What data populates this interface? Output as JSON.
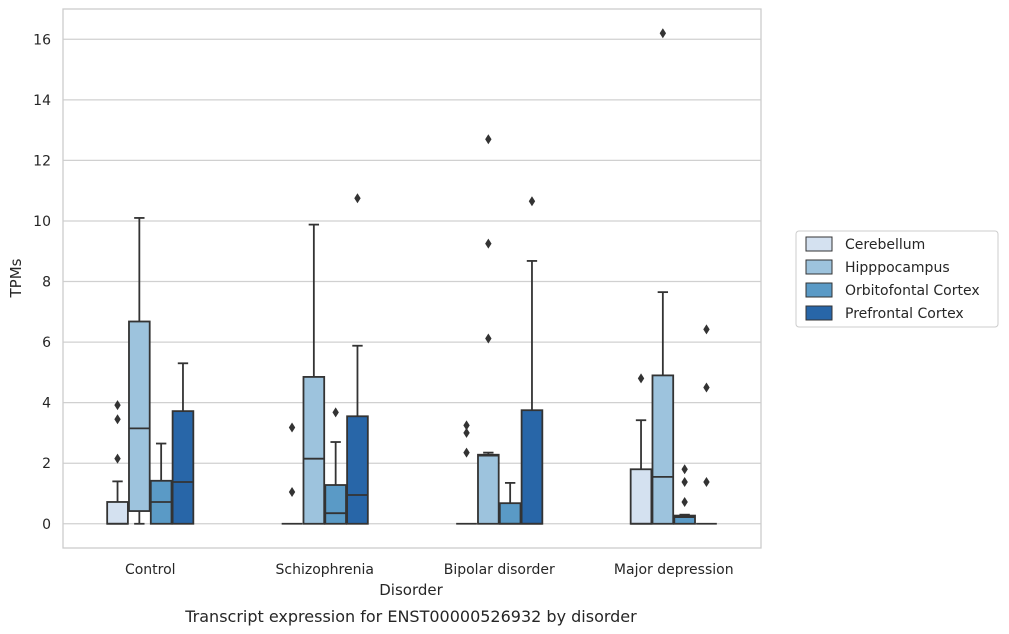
{
  "chart_data": {
    "type": "box",
    "xlabel": "Disorder",
    "ylabel": "TPMs",
    "caption": "Transcript expression for ENST00000526932 by disorder",
    "ylim": [
      -0.8,
      17.0
    ],
    "yticks": [
      0,
      2,
      4,
      6,
      8,
      10,
      12,
      14,
      16
    ],
    "grid": "horizontal",
    "legend_position": "right",
    "categories": [
      "Control",
      "Schizophrenia",
      "Bipolar disorder",
      "Major depression"
    ],
    "series": [
      {
        "name": "Cerebellum",
        "color": "#d4e1f0",
        "boxes": [
          {
            "whisker_low": 0,
            "q1": 0,
            "median": 0,
            "q3": 0.72,
            "whisker_high": 1.4,
            "outliers": [
              2.15,
              3.45,
              3.92
            ]
          },
          {
            "whisker_low": 0,
            "q1": 0,
            "median": 0,
            "q3": 0,
            "whisker_high": 0,
            "outliers": [
              1.05,
              3.18
            ]
          },
          {
            "whisker_low": 0,
            "q1": 0,
            "median": 0,
            "q3": 0,
            "whisker_high": 0,
            "outliers": [
              2.35,
              3.0,
              3.25
            ]
          },
          {
            "whisker_low": 0,
            "q1": 0,
            "median": 0,
            "q3": 1.8,
            "whisker_high": 3.42,
            "outliers": [
              4.8
            ]
          }
        ]
      },
      {
        "name": "Hipppocampus",
        "color": "#9dc3dd",
        "boxes": [
          {
            "whisker_low": 0,
            "q1": 0.42,
            "median": 3.15,
            "q3": 6.68,
            "whisker_high": 10.1,
            "outliers": []
          },
          {
            "whisker_low": 0,
            "q1": 0,
            "median": 2.15,
            "q3": 4.85,
            "whisker_high": 9.88,
            "outliers": []
          },
          {
            "whisker_low": 0,
            "q1": 0,
            "median": 2.25,
            "q3": 2.28,
            "whisker_high": 2.35,
            "outliers": [
              6.12,
              9.25,
              12.7
            ]
          },
          {
            "whisker_low": 0,
            "q1": 0,
            "median": 1.55,
            "q3": 4.9,
            "whisker_high": 7.65,
            "outliers": [
              16.2
            ]
          }
        ]
      },
      {
        "name": "Orbitofontal Cortex",
        "color": "#5a9ac6",
        "boxes": [
          {
            "whisker_low": 0,
            "q1": 0,
            "median": 0.72,
            "q3": 1.42,
            "whisker_high": 2.65,
            "outliers": []
          },
          {
            "whisker_low": 0,
            "q1": 0,
            "median": 0.35,
            "q3": 1.28,
            "whisker_high": 2.7,
            "outliers": [
              3.68
            ]
          },
          {
            "whisker_low": 0,
            "q1": 0,
            "median": 0,
            "q3": 0.68,
            "whisker_high": 1.35,
            "outliers": []
          },
          {
            "whisker_low": 0,
            "q1": 0,
            "median": 0.22,
            "q3": 0.27,
            "whisker_high": 0.3,
            "outliers": [
              0.72,
              1.38,
              1.8
            ]
          }
        ]
      },
      {
        "name": "Prefrontal Cortex",
        "color": "#2866a8",
        "boxes": [
          {
            "whisker_low": 0,
            "q1": 0,
            "median": 1.38,
            "q3": 3.72,
            "whisker_high": 5.3,
            "outliers": []
          },
          {
            "whisker_low": 0,
            "q1": 0,
            "median": 0.95,
            "q3": 3.55,
            "whisker_high": 5.88,
            "outliers": [
              10.75
            ]
          },
          {
            "whisker_low": 0,
            "q1": 0,
            "median": 0,
            "q3": 3.75,
            "whisker_high": 8.68,
            "outliers": [
              10.65
            ]
          },
          {
            "whisker_low": 0,
            "q1": 0,
            "median": 0,
            "q3": 0,
            "whisker_high": 0,
            "outliers": [
              1.38,
              4.5,
              6.42
            ]
          }
        ]
      }
    ]
  }
}
